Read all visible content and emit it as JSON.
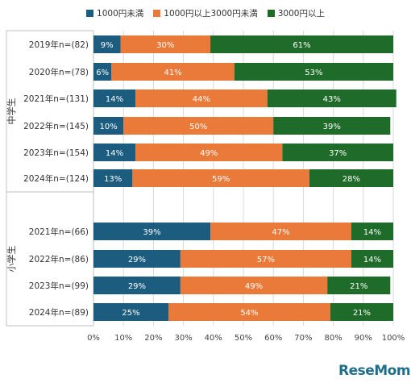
{
  "legend": [
    {
      "label": "1000円未満",
      "color": "#1b5c7f"
    },
    {
      "label": "1000円以上3000円未満",
      "color": "#ea7a3a"
    },
    {
      "label": "3000円以上",
      "color": "#1f6b2a"
    }
  ],
  "brand": "ReseMom",
  "chart_data": {
    "type": "bar",
    "orientation": "horizontal",
    "stacked": true,
    "xlim": [
      0,
      100
    ],
    "x_ticks": [
      "0%",
      "10%",
      "20%",
      "30%",
      "40%",
      "50%",
      "60%",
      "70%",
      "80%",
      "90%",
      "100%"
    ],
    "groups": [
      {
        "label": "中学生",
        "categories": [
          "2019年n=(82)",
          "2020年n=(78)",
          "2021年n=(131)",
          "2022年n=(145)",
          "2023年n=(154)",
          "2024年n=(124)"
        ],
        "series": [
          {
            "name": "1000円未満",
            "values": [
              9,
              6,
              14,
              10,
              14,
              13
            ]
          },
          {
            "name": "1000円以上3000円未満",
            "values": [
              30,
              41,
              44,
              50,
              49,
              59
            ]
          },
          {
            "name": "3000円以上",
            "values": [
              61,
              53,
              43,
              39,
              37,
              28
            ]
          }
        ]
      },
      {
        "label": "小学生",
        "categories": [
          "2021年n=(66)",
          "2022年n=(86)",
          "2023年n=(99)",
          "2024年n=(89)"
        ],
        "series": [
          {
            "name": "1000円未満",
            "values": [
              39,
              29,
              29,
              25
            ]
          },
          {
            "name": "1000円以上3000円未満",
            "values": [
              47,
              57,
              49,
              54
            ]
          },
          {
            "name": "3000円以上",
            "values": [
              14,
              14,
              21,
              21
            ]
          }
        ]
      }
    ]
  }
}
